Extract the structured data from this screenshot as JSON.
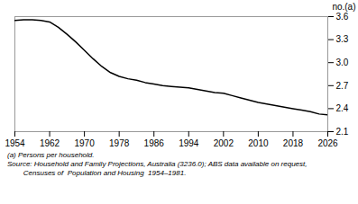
{
  "chart_data": {
    "type": "line",
    "x": [
      1954,
      1956,
      1958,
      1960,
      1962,
      1964,
      1966,
      1968,
      1970,
      1972,
      1974,
      1976,
      1978,
      1980,
      1982,
      1984,
      1986,
      1988,
      1990,
      1992,
      1994,
      1996,
      1998,
      2000,
      2002,
      2004,
      2006,
      2008,
      2010,
      2012,
      2014,
      2016,
      2018,
      2020,
      2022,
      2024,
      2026
    ],
    "values": [
      3.55,
      3.56,
      3.56,
      3.55,
      3.53,
      3.46,
      3.37,
      3.27,
      3.16,
      3.05,
      2.95,
      2.87,
      2.82,
      2.79,
      2.77,
      2.74,
      2.72,
      2.7,
      2.69,
      2.68,
      2.67,
      2.65,
      2.63,
      2.61,
      2.6,
      2.57,
      2.54,
      2.51,
      2.48,
      2.46,
      2.44,
      2.42,
      2.4,
      2.38,
      2.36,
      2.33,
      2.32
    ],
    "color": "#000000",
    "xlim": [
      1954,
      2026
    ],
    "ylim": [
      2.1,
      3.6
    ],
    "xticks": [
      1954,
      1962,
      1970,
      1978,
      1986,
      1994,
      2002,
      2010,
      2018,
      2026
    ],
    "yticks": [
      2.1,
      2.4,
      2.7,
      {
        "value": 3.0,
        "label": "3.0"
      },
      3.3,
      3.6
    ],
    "ylabel": "no.(a)",
    "grid": false,
    "annotations": [
      "(a) Persons per household.",
      "Source: Household and Family Projections, Australia (3236.0); ABS data available on request,",
      "        Censuses of  Population and Housing  1954–1981."
    ]
  }
}
